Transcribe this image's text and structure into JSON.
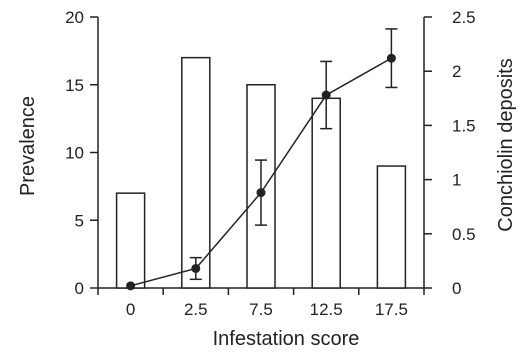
{
  "chart_data": {
    "type": "bar",
    "categories": [
      "0",
      "2.5",
      "7.5",
      "12.5",
      "17.5"
    ],
    "series": [
      {
        "axis": "left",
        "type": "bar",
        "values": [
          7,
          17,
          15,
          14,
          9
        ]
      },
      {
        "axis": "right",
        "type": "line",
        "values": [
          0.02,
          0.18,
          0.88,
          1.78,
          2.12
        ],
        "error": [
          0.0,
          0.1,
          0.3,
          0.31,
          0.27
        ]
      }
    ],
    "xlabel": "Infestation score",
    "ylabel_left": "Prevalence",
    "ylabel_right": "Conchiolin deposits",
    "ylim_left": [
      0,
      20
    ],
    "ylim_right": [
      0,
      2.5
    ],
    "yticks_left": [
      "0",
      "5",
      "10",
      "15",
      "20"
    ],
    "yticks_right": [
      "0",
      "0.5",
      "1",
      "1.5",
      "2",
      "2.5"
    ],
    "grid": false,
    "colors": {
      "bar_fill": "#ffffff",
      "bar_stroke": "#222222",
      "line": "#222222",
      "marker": "#222222",
      "axis": "#222222"
    }
  }
}
